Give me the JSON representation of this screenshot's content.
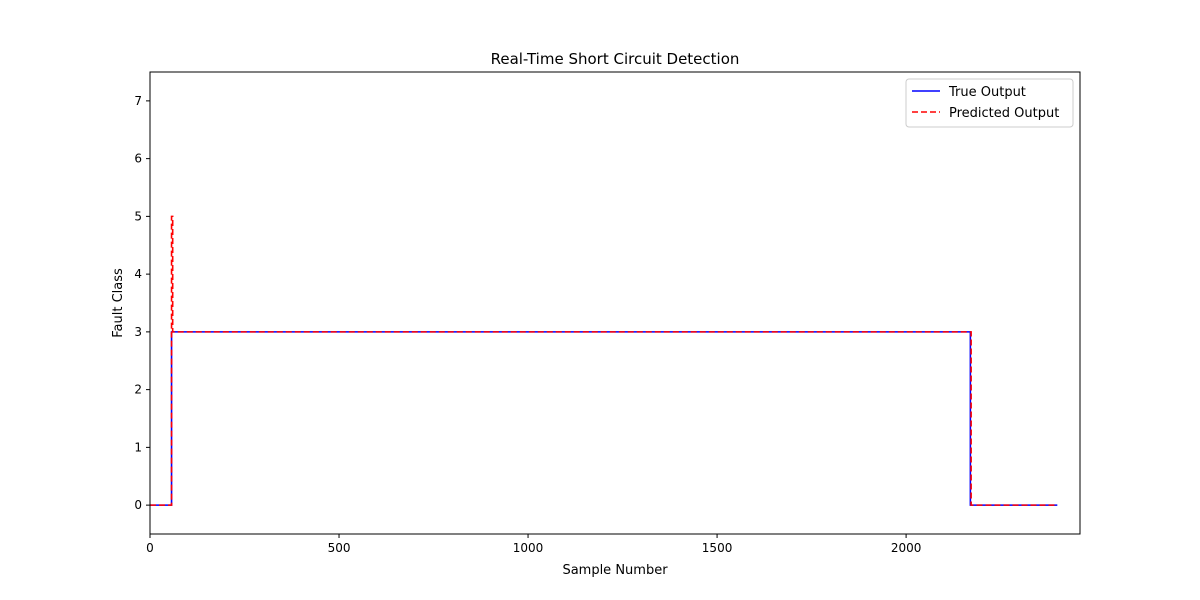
{
  "chart_data": {
    "type": "line",
    "title": "Real-Time Short Circuit Detection",
    "xlabel": "Sample Number",
    "ylabel": "Fault Class",
    "xlim": [
      0,
      2460
    ],
    "ylim": [
      -0.5,
      7.5
    ],
    "xticks": [
      0,
      500,
      1000,
      1500,
      2000
    ],
    "yticks": [
      0,
      1,
      2,
      3,
      4,
      5,
      6,
      7
    ],
    "grid": false,
    "legend_position": "top-right",
    "series": [
      {
        "name": "True Output",
        "color": "#0000ff",
        "style": "solid",
        "x": [
          0,
          57,
          57,
          2170,
          2170,
          2400
        ],
        "y": [
          0,
          0,
          3,
          3,
          0,
          0
        ]
      },
      {
        "name": "Predicted Output",
        "color": "#ff0000",
        "style": "dashed",
        "x": [
          0,
          57,
          57,
          60,
          60,
          2172,
          2172,
          2400
        ],
        "y": [
          0,
          0,
          5,
          5,
          3,
          3,
          0,
          0
        ]
      }
    ]
  }
}
